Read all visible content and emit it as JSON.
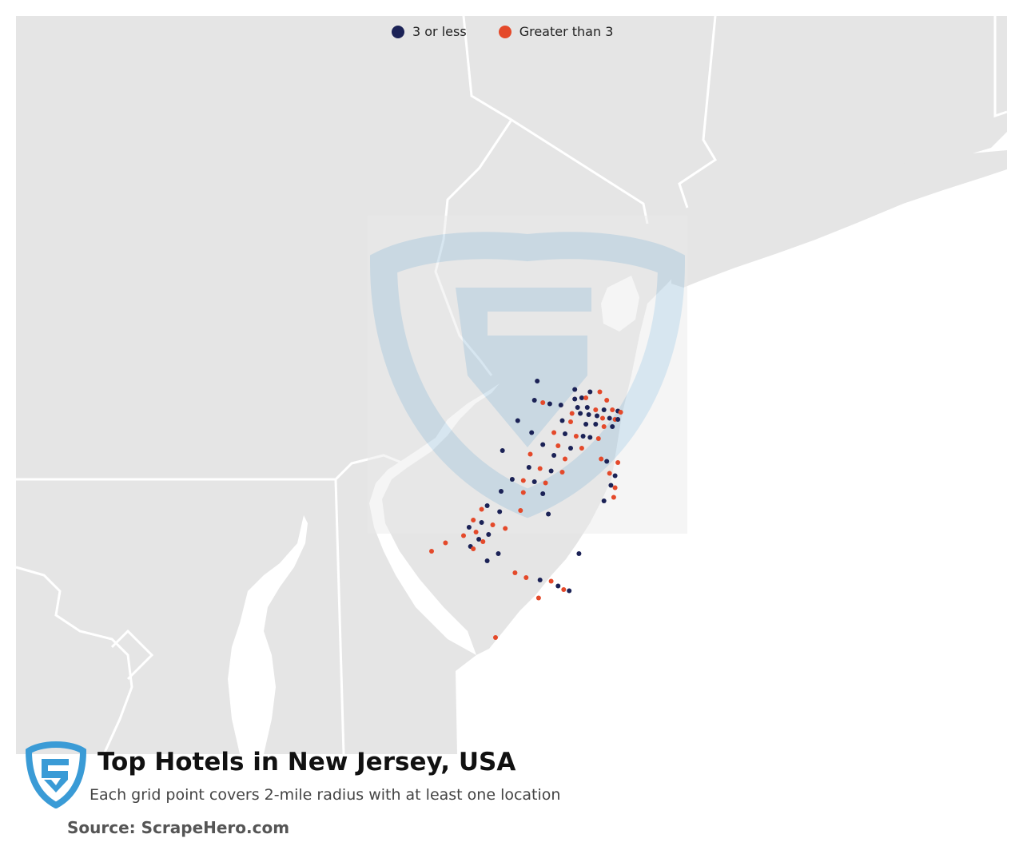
{
  "legend": {
    "items": [
      {
        "label": "3 or less",
        "color": "#1b2256"
      },
      {
        "label": "Greater than 3",
        "color": "#e4492a"
      }
    ]
  },
  "title": "Top Hotels in New Jersey, USA",
  "subtitle": "Each grid point covers 2-mile radius with at least one location",
  "source": "Source: ScrapeHero.com",
  "colors": {
    "land": "#e5e5e5",
    "water": "#ffffff",
    "border": "#ffffff",
    "watermark": "#b9d3e4",
    "logo": "#3a9bd6"
  },
  "map_points": [
    {
      "g": "low",
      "lon": -74.6,
      "lat": 41.12
    },
    {
      "g": "low",
      "lon": -74.33,
      "lat": 41.05
    },
    {
      "g": "low",
      "lon": -74.22,
      "lat": 41.03
    },
    {
      "g": "high",
      "lon": -74.15,
      "lat": 41.03
    },
    {
      "g": "low",
      "lon": -74.28,
      "lat": 40.98
    },
    {
      "g": "high",
      "lon": -74.25,
      "lat": 40.98
    },
    {
      "g": "low",
      "lon": -74.33,
      "lat": 40.97
    },
    {
      "g": "high",
      "lon": -74.1,
      "lat": 40.96
    },
    {
      "g": "low",
      "lon": -74.62,
      "lat": 40.96
    },
    {
      "g": "high",
      "lon": -74.56,
      "lat": 40.94
    },
    {
      "g": "low",
      "lon": -74.51,
      "lat": 40.93
    },
    {
      "g": "low",
      "lon": -74.43,
      "lat": 40.92
    },
    {
      "g": "low",
      "lon": -74.31,
      "lat": 40.9
    },
    {
      "g": "low",
      "lon": -74.24,
      "lat": 40.9
    },
    {
      "g": "high",
      "lon": -74.18,
      "lat": 40.88
    },
    {
      "g": "low",
      "lon": -74.12,
      "lat": 40.88
    },
    {
      "g": "high",
      "lon": -74.06,
      "lat": 40.88
    },
    {
      "g": "low",
      "lon": -74.02,
      "lat": 40.87
    },
    {
      "g": "high",
      "lon": -74.0,
      "lat": 40.86
    },
    {
      "g": "high",
      "lon": -74.35,
      "lat": 40.85
    },
    {
      "g": "low",
      "lon": -74.29,
      "lat": 40.85
    },
    {
      "g": "low",
      "lon": -74.23,
      "lat": 40.84
    },
    {
      "g": "low",
      "lon": -74.17,
      "lat": 40.83
    },
    {
      "g": "high",
      "lon": -74.13,
      "lat": 40.81
    },
    {
      "g": "low",
      "lon": -74.08,
      "lat": 40.81
    },
    {
      "g": "high",
      "lon": -74.04,
      "lat": 40.8
    },
    {
      "g": "low",
      "lon": -74.02,
      "lat": 40.8
    },
    {
      "g": "low",
      "lon": -74.74,
      "lat": 40.79
    },
    {
      "g": "low",
      "lon": -74.42,
      "lat": 40.79
    },
    {
      "g": "high",
      "lon": -74.36,
      "lat": 40.78
    },
    {
      "g": "low",
      "lon": -74.25,
      "lat": 40.76
    },
    {
      "g": "low",
      "lon": -74.18,
      "lat": 40.76
    },
    {
      "g": "high",
      "lon": -74.12,
      "lat": 40.74
    },
    {
      "g": "low",
      "lon": -74.06,
      "lat": 40.74
    },
    {
      "g": "low",
      "lon": -74.64,
      "lat": 40.69
    },
    {
      "g": "high",
      "lon": -74.48,
      "lat": 40.69
    },
    {
      "g": "low",
      "lon": -74.4,
      "lat": 40.68
    },
    {
      "g": "high",
      "lon": -74.32,
      "lat": 40.66
    },
    {
      "g": "low",
      "lon": -74.27,
      "lat": 40.66
    },
    {
      "g": "low",
      "lon": -74.22,
      "lat": 40.65
    },
    {
      "g": "high",
      "lon": -74.16,
      "lat": 40.64
    },
    {
      "g": "low",
      "lon": -74.56,
      "lat": 40.59
    },
    {
      "g": "high",
      "lon": -74.45,
      "lat": 40.58
    },
    {
      "g": "low",
      "lon": -74.36,
      "lat": 40.56
    },
    {
      "g": "high",
      "lon": -74.28,
      "lat": 40.56
    },
    {
      "g": "low",
      "lon": -74.85,
      "lat": 40.54
    },
    {
      "g": "high",
      "lon": -74.65,
      "lat": 40.51
    },
    {
      "g": "low",
      "lon": -74.48,
      "lat": 40.5
    },
    {
      "g": "high",
      "lon": -74.4,
      "lat": 40.47
    },
    {
      "g": "high",
      "lon": -74.14,
      "lat": 40.47
    },
    {
      "g": "low",
      "lon": -74.1,
      "lat": 40.45
    },
    {
      "g": "high",
      "lon": -74.02,
      "lat": 40.44
    },
    {
      "g": "low",
      "lon": -74.66,
      "lat": 40.4
    },
    {
      "g": "high",
      "lon": -74.58,
      "lat": 40.39
    },
    {
      "g": "low",
      "lon": -74.5,
      "lat": 40.37
    },
    {
      "g": "high",
      "lon": -74.42,
      "lat": 40.36
    },
    {
      "g": "high",
      "lon": -74.08,
      "lat": 40.35
    },
    {
      "g": "low",
      "lon": -74.04,
      "lat": 40.33
    },
    {
      "g": "low",
      "lon": -74.78,
      "lat": 40.3
    },
    {
      "g": "high",
      "lon": -74.7,
      "lat": 40.29
    },
    {
      "g": "low",
      "lon": -74.62,
      "lat": 40.28
    },
    {
      "g": "high",
      "lon": -74.54,
      "lat": 40.27
    },
    {
      "g": "low",
      "lon": -74.07,
      "lat": 40.25
    },
    {
      "g": "high",
      "lon": -74.04,
      "lat": 40.23
    },
    {
      "g": "low",
      "lon": -74.86,
      "lat": 40.2
    },
    {
      "g": "high",
      "lon": -74.7,
      "lat": 40.19
    },
    {
      "g": "low",
      "lon": -74.56,
      "lat": 40.18
    },
    {
      "g": "high",
      "lon": -74.05,
      "lat": 40.15
    },
    {
      "g": "low",
      "lon": -74.12,
      "lat": 40.12
    },
    {
      "g": "low",
      "lon": -74.96,
      "lat": 40.08
    },
    {
      "g": "high",
      "lon": -75.0,
      "lat": 40.05
    },
    {
      "g": "low",
      "lon": -74.87,
      "lat": 40.03
    },
    {
      "g": "high",
      "lon": -74.72,
      "lat": 40.04
    },
    {
      "g": "low",
      "lon": -74.52,
      "lat": 40.01
    },
    {
      "g": "high",
      "lon": -75.06,
      "lat": 39.96
    },
    {
      "g": "low",
      "lon": -75.0,
      "lat": 39.94
    },
    {
      "g": "high",
      "lon": -74.92,
      "lat": 39.92
    },
    {
      "g": "low",
      "lon": -75.09,
      "lat": 39.9
    },
    {
      "g": "high",
      "lon": -74.83,
      "lat": 39.89
    },
    {
      "g": "high",
      "lon": -75.04,
      "lat": 39.86
    },
    {
      "g": "low",
      "lon": -74.95,
      "lat": 39.84
    },
    {
      "g": "high",
      "lon": -75.13,
      "lat": 39.83
    },
    {
      "g": "low",
      "lon": -75.02,
      "lat": 39.8
    },
    {
      "g": "high",
      "lon": -74.99,
      "lat": 39.78
    },
    {
      "g": "high",
      "lon": -75.26,
      "lat": 39.77
    },
    {
      "g": "low",
      "lon": -75.08,
      "lat": 39.74
    },
    {
      "g": "high",
      "lon": -75.06,
      "lat": 39.72
    },
    {
      "g": "high",
      "lon": -75.36,
      "lat": 39.7
    },
    {
      "g": "low",
      "lon": -74.88,
      "lat": 39.68
    },
    {
      "g": "low",
      "lon": -74.3,
      "lat": 39.68
    },
    {
      "g": "low",
      "lon": -74.96,
      "lat": 39.62
    },
    {
      "g": "high",
      "lon": -74.76,
      "lat": 39.52
    },
    {
      "g": "high",
      "lon": -74.68,
      "lat": 39.48
    },
    {
      "g": "low",
      "lon": -74.58,
      "lat": 39.46
    },
    {
      "g": "high",
      "lon": -74.5,
      "lat": 39.45
    },
    {
      "g": "low",
      "lon": -74.45,
      "lat": 39.41
    },
    {
      "g": "high",
      "lon": -74.41,
      "lat": 39.38
    },
    {
      "g": "low",
      "lon": -74.37,
      "lat": 39.37
    },
    {
      "g": "high",
      "lon": -74.59,
      "lat": 39.31
    },
    {
      "g": "high",
      "lon": -74.9,
      "lat": 38.98
    }
  ]
}
